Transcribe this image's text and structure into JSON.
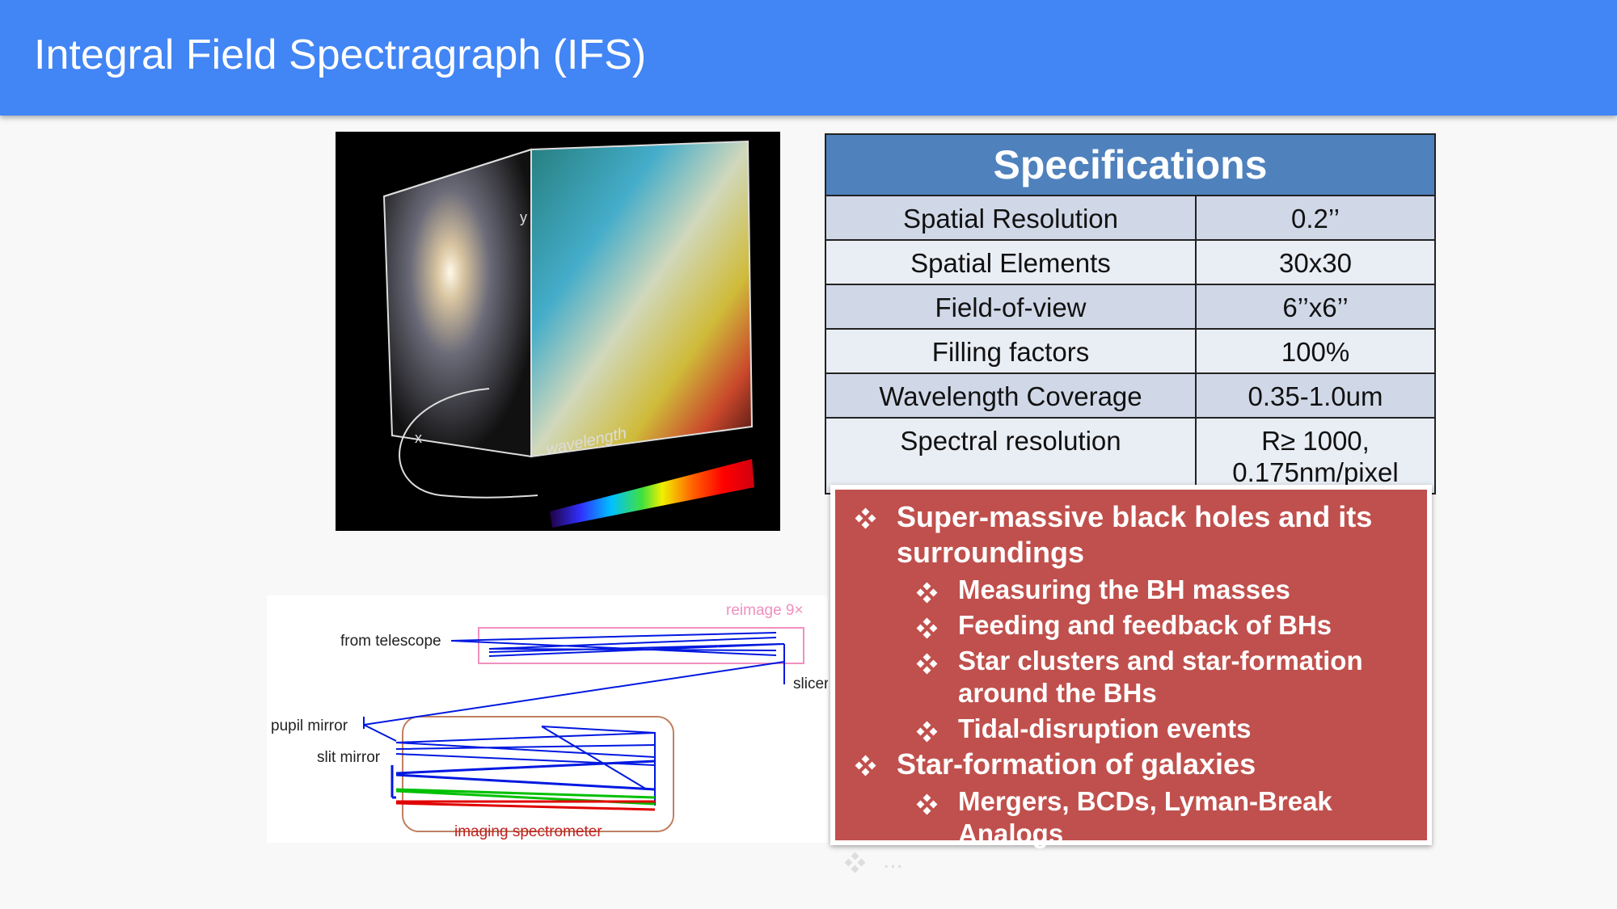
{
  "header": {
    "title": "Integral Field Spectragraph (IFS)"
  },
  "cube_image": {
    "labels": [
      "y",
      "x",
      "wavelength"
    ]
  },
  "optics_diagram": {
    "labels": [
      "reimage 9×",
      "from telescope",
      "slicer",
      "pupil mirror",
      "slit mirror",
      "imaging spectrometer"
    ]
  },
  "spec_table": {
    "title": "Specifications",
    "rows": [
      [
        "Spatial Resolution",
        "0.2’’"
      ],
      [
        "Spatial Elements",
        "30x30"
      ],
      [
        "Field-of-view",
        "6’’x6’’"
      ],
      [
        "Filling factors",
        "100%"
      ],
      [
        "Wavelength Coverage",
        "0.35-1.0um"
      ],
      [
        "Spectral resolution",
        "R≥ 1000, 0.175nm/pixel"
      ]
    ]
  },
  "science_box": {
    "items": [
      {
        "text": "Super-massive black holes and its surroundings",
        "subitems": [
          "Measuring the BH masses",
          "Feeding and feedback of BHs",
          "Star clusters and star-formation around the BHs",
          "Tidal-disruption events"
        ]
      },
      {
        "text": "Star-formation of galaxies",
        "subitems": [
          "Mergers, BCDs, Lyman-Break Analogs"
        ]
      }
    ]
  },
  "overflow_text": "..."
}
